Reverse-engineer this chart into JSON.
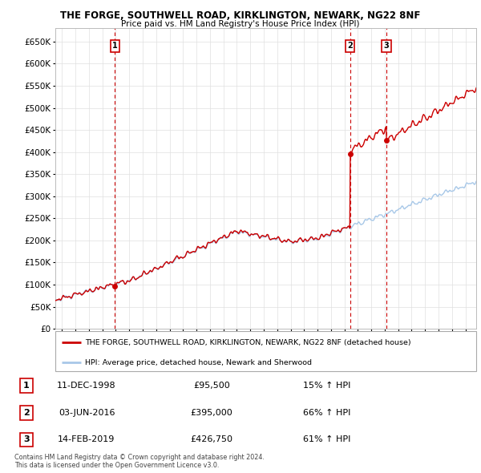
{
  "title1": "THE FORGE, SOUTHWELL ROAD, KIRKLINGTON, NEWARK, NG22 8NF",
  "title2": "Price paid vs. HM Land Registry's House Price Index (HPI)",
  "ylim": [
    0,
    680000
  ],
  "yticks": [
    0,
    50000,
    100000,
    150000,
    200000,
    250000,
    300000,
    350000,
    400000,
    450000,
    500000,
    550000,
    600000,
    650000
  ],
  "xlim_start": 1994.5,
  "xlim_end": 2025.8,
  "sale_dates": [
    1998.94,
    2016.42,
    2019.12
  ],
  "sale_prices": [
    95500,
    395000,
    426750
  ],
  "sale_labels": [
    "1",
    "2",
    "3"
  ],
  "hpi_color": "#a8c8e8",
  "property_color": "#cc0000",
  "vline_color": "#cc0000",
  "legend_property": "THE FORGE, SOUTHWELL ROAD, KIRKLINGTON, NEWARK, NG22 8NF (detached house)",
  "legend_hpi": "HPI: Average price, detached house, Newark and Sherwood",
  "table_rows": [
    [
      "1",
      "11-DEC-1998",
      "£95,500",
      "15% ↑ HPI"
    ],
    [
      "2",
      "03-JUN-2016",
      "£395,000",
      "66% ↑ HPI"
    ],
    [
      "3",
      "14-FEB-2019",
      "£426,750",
      "61% ↑ HPI"
    ]
  ],
  "footer": "Contains HM Land Registry data © Crown copyright and database right 2024.\nThis data is licensed under the Open Government Licence v3.0.",
  "background_color": "#ffffff",
  "grid_color": "#e0e0e0"
}
